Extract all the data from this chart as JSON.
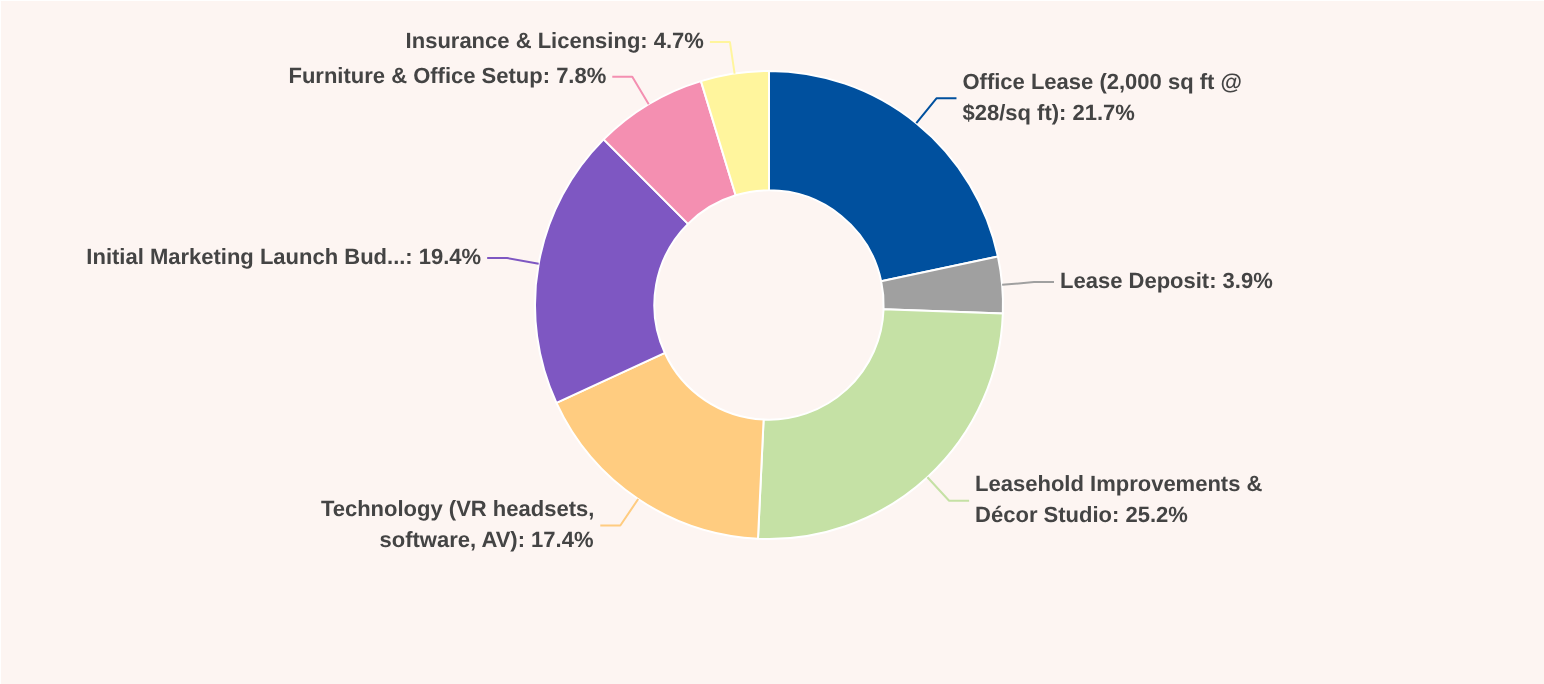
{
  "chart_data": {
    "type": "donut",
    "categories": [
      "Office Lease (2,000 sq ft @ $28/sq ft)",
      "Lease Deposit",
      "Leasehold Improvements & Décor Studio",
      "Technology (VR headsets, software, AV)",
      "Initial Marketing Launch Bud...",
      "Furniture & Office Setup",
      "Insurance & Licensing"
    ],
    "values": [
      21.7,
      3.9,
      25.2,
      17.4,
      19.4,
      7.8,
      4.7
    ],
    "value_labels": [
      "21.7%",
      "3.9%",
      "25.2%",
      "17.4%",
      "19.4%",
      "7.8%",
      "4.7%"
    ],
    "colors": [
      "#00509e",
      "#a0a0a0",
      "#c5e1a5",
      "#ffcc80",
      "#7e57c2",
      "#f48fb1",
      "#fff59d"
    ]
  }
}
